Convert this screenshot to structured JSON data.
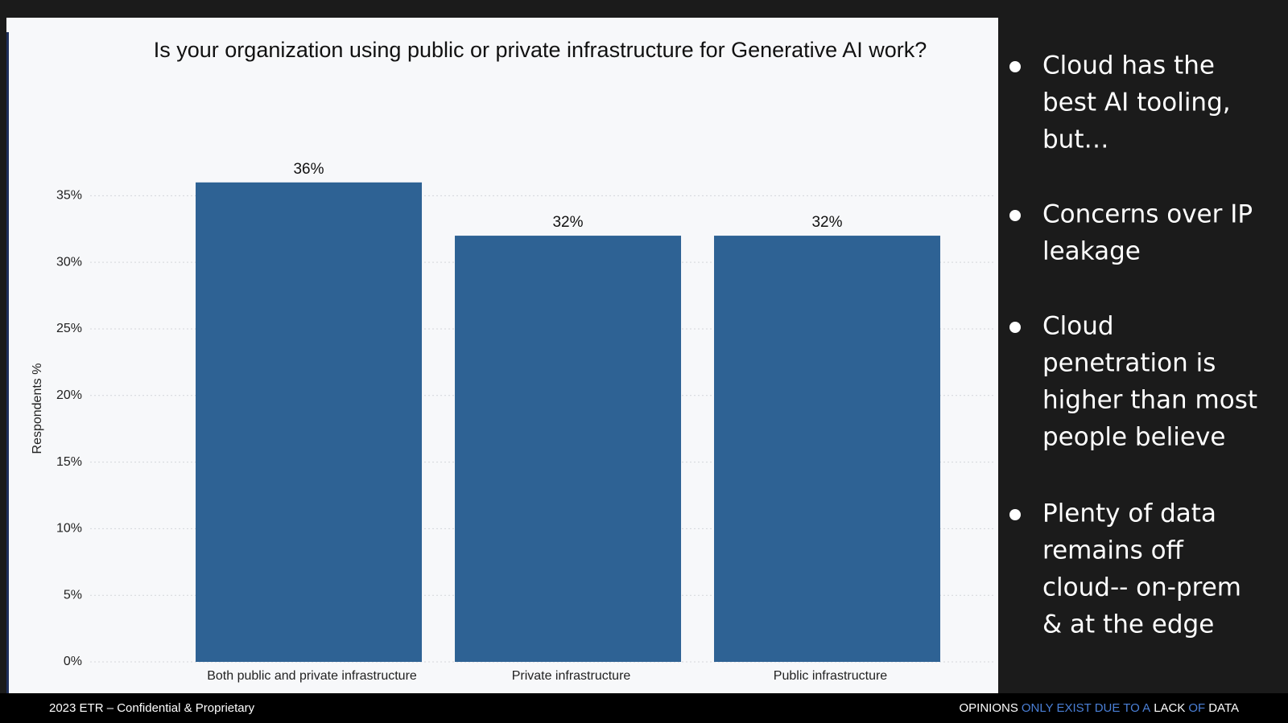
{
  "chart_data": {
    "type": "bar",
    "title": "Is your organization using public or private infrastructure for Generative AI work?",
    "y_label": "Respondents %",
    "categories": [
      "Both public and private infrastructure",
      "Private infrastructure",
      "Public infrastructure"
    ],
    "values": [
      36,
      32,
      32
    ],
    "value_labels": [
      "36%",
      "32%",
      "32%"
    ],
    "color": "#2e6294",
    "ylim": [
      0,
      38
    ],
    "yticks": [
      {
        "value": 0,
        "label": "0%"
      },
      {
        "value": 5,
        "label": "5%"
      },
      {
        "value": 10,
        "label": "10%"
      },
      {
        "value": 15,
        "label": "15%"
      },
      {
        "value": 20,
        "label": "20%"
      },
      {
        "value": 25,
        "label": "25%"
      },
      {
        "value": 30,
        "label": "30%"
      },
      {
        "value": 35,
        "label": "35%"
      }
    ],
    "grid": true
  },
  "bullets": [
    [
      "Cloud has the",
      "best AI tooling,",
      "but…"
    ],
    [
      "Concerns over IP",
      "leakage"
    ],
    [
      "Cloud",
      "penetration is",
      "higher than most",
      "people believe"
    ],
    [
      "Plenty of data",
      "remains off",
      "cloud-- on-prem",
      "& at the edge"
    ]
  ],
  "footer": {
    "left": "2023 ETR – Confidential & Proprietary",
    "tagline": [
      {
        "text": "OPINIONS",
        "color": "#ffffff"
      },
      {
        "text": "ONLY EXIST DUE TO A",
        "color": "#4a7fd6"
      },
      {
        "text": "LACK",
        "color": "#ffffff"
      },
      {
        "text": "OF",
        "color": "#4a7fd6"
      },
      {
        "text": "DATA",
        "color": "#ffffff"
      }
    ]
  }
}
